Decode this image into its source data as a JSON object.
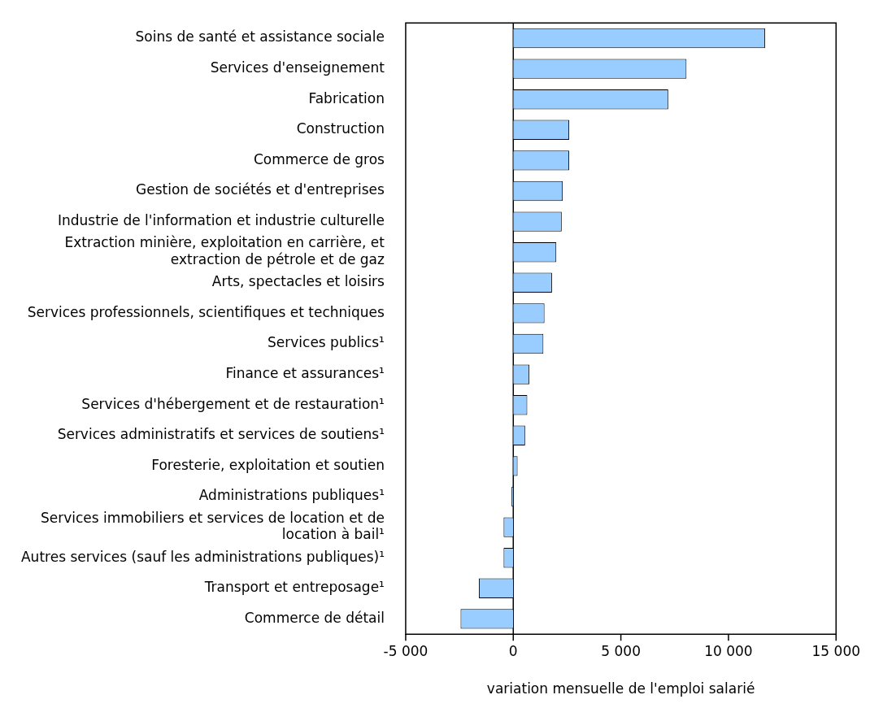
{
  "chart_data": {
    "type": "bar",
    "orientation": "horizontal",
    "xlabel": "variation mensuelle de l'emploi salarié",
    "categories": [
      "Soins de santé et assistance sociale",
      "Services d'enseignement",
      "Fabrication",
      "Construction",
      "Commerce de gros",
      "Gestion de sociétés et d'entreprises",
      "Industrie de l'information et industrie culturelle",
      "Extraction minière, exploitation en carrière, et extraction de pétrole et de gaz",
      "Arts, spectacles et loisirs",
      "Services professionnels, scientifiques et techniques",
      "Services publics¹",
      "Finance et assurances¹",
      "Services d'hébergement et de restauration¹",
      "Services administratifs et services de soutiens¹",
      "Foresterie, exploitation et soutien",
      "Administrations publiques¹",
      "Services immobiliers et services de location et de location à bail¹",
      "Autres services (sauf les administrations publiques)¹",
      "Transport et entreposage¹",
      "Commerce de détail"
    ],
    "values": [
      11700,
      8050,
      7200,
      2600,
      2600,
      2300,
      2250,
      2000,
      1800,
      1450,
      1400,
      750,
      650,
      550,
      200,
      -80,
      -450,
      -450,
      -1600,
      -2450
    ],
    "color": "#99ccff",
    "xlim": [
      -5000,
      15000
    ],
    "xticks": [
      {
        "value": -5000,
        "label": "-5 000"
      },
      0,
      {
        "value": 5000,
        "label": "5 000"
      },
      {
        "value": 10000,
        "label": "10 000"
      },
      {
        "value": 15000,
        "label": "15 000"
      }
    ],
    "ref_lines": [
      {
        "axis": "x",
        "value": 0,
        "color": "#000000"
      }
    ],
    "grid": false,
    "legend": false
  }
}
